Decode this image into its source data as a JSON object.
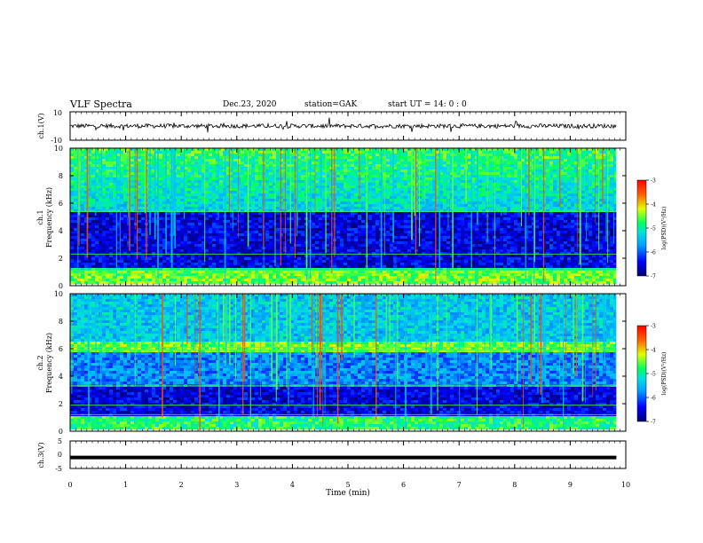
{
  "header": {
    "title": "VLF Spectra",
    "date": "Dec.23, 2020",
    "station": "station=GAK",
    "start_time": "start UT = 14: 0 : 0"
  },
  "chart_data": [
    {
      "type": "line",
      "panel": "ch1-waveform",
      "ylabel": "ch.1(V)",
      "ylim": [
        -10,
        10
      ],
      "yticks": [
        "10",
        "-10"
      ],
      "x_range_min": [
        0,
        9.83
      ],
      "baseline_v": 0,
      "description_level": "noisy waveform near 0 V"
    },
    {
      "type": "heatmap",
      "panel": "ch1-spectrogram",
      "ylabel": "ch.1\nFrequency (kHz)",
      "ylim": [
        0,
        10
      ],
      "yticks": [
        "0",
        "2",
        "4",
        "6",
        "8",
        "10"
      ],
      "colorbar": {
        "label": "log(PSD)(V²/Hz)",
        "range": [
          -7,
          -3
        ],
        "ticks": [
          "-3",
          "-4",
          "-5",
          "-6",
          "-7"
        ]
      }
    },
    {
      "type": "heatmap",
      "panel": "ch2-spectrogram",
      "ylabel": "ch.2\nFrequency (kHz)",
      "ylim": [
        0,
        10
      ],
      "yticks": [
        "0",
        "2",
        "4",
        "6",
        "8",
        "10"
      ],
      "colorbar": {
        "label": "log(PSD)(V²/Hz)",
        "range": [
          -7,
          -3
        ],
        "ticks": [
          "-3",
          "-4",
          "-5",
          "-6",
          "-7"
        ]
      }
    },
    {
      "type": "line",
      "panel": "ch3-waveform",
      "ylabel": "ch.3(V)",
      "ylim": [
        -5,
        5
      ],
      "yticks": [
        "5",
        "0",
        "-5"
      ],
      "level_v": -1
    }
  ],
  "xaxis": {
    "label": "Time (min)",
    "ticks": [
      "0",
      "1",
      "2",
      "3",
      "4",
      "5",
      "6",
      "7",
      "8",
      "9",
      "10"
    ],
    "range": [
      0,
      10
    ],
    "data_end_min": 9.83
  },
  "colors": {
    "axis": "#000000",
    "background": "#ffffff"
  }
}
